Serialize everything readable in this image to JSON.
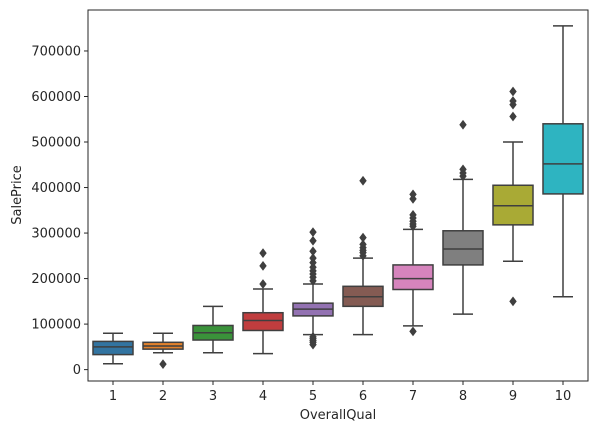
{
  "chart_data": {
    "type": "box",
    "xlabel": "OverallQual",
    "ylabel": "SalePrice",
    "ylim": [
      -25000,
      790000
    ],
    "yticks": [
      0,
      100000,
      200000,
      300000,
      400000,
      500000,
      600000,
      700000
    ],
    "categories": [
      "1",
      "2",
      "3",
      "4",
      "5",
      "6",
      "7",
      "8",
      "9",
      "10"
    ],
    "colors": [
      "#3274a1",
      "#e1812c",
      "#3a923a",
      "#c03d3e",
      "#9372b2",
      "#845b53",
      "#d684bd",
      "#7f7f7f",
      "#a9aa35",
      "#2eb4c1"
    ],
    "series": [
      {
        "category": "1",
        "whisker_low": 13000,
        "q1": 33000,
        "median": 50000,
        "q3": 62000,
        "whisker_high": 80000,
        "outliers": []
      },
      {
        "category": "2",
        "whisker_low": 37000,
        "q1": 45000,
        "median": 52000,
        "q3": 60000,
        "whisker_high": 80000,
        "outliers": [
          12000
        ]
      },
      {
        "category": "3",
        "whisker_low": 37000,
        "q1": 65000,
        "median": 81000,
        "q3": 97000,
        "whisker_high": 139000,
        "outliers": []
      },
      {
        "category": "4",
        "whisker_low": 35000,
        "q1": 86000,
        "median": 108000,
        "q3": 125000,
        "whisker_high": 177000,
        "outliers": [
          188000,
          228000,
          256000
        ]
      },
      {
        "category": "5",
        "whisker_low": 77000,
        "q1": 118000,
        "median": 133000,
        "q3": 146000,
        "whisker_high": 188000,
        "outliers": [
          55000,
          60000,
          64000,
          68000,
          72000,
          195000,
          203000,
          210000,
          217000,
          225000,
          235000,
          245000,
          260000,
          283000,
          302000
        ]
      },
      {
        "category": "6",
        "whisker_low": 77000,
        "q1": 139000,
        "median": 160000,
        "q3": 183000,
        "whisker_high": 245000,
        "outliers": [
          250000,
          257000,
          262000,
          268000,
          275000,
          290000,
          415000
        ]
      },
      {
        "category": "7",
        "whisker_low": 96000,
        "q1": 176000,
        "median": 200000,
        "q3": 230000,
        "whisker_high": 308000,
        "outliers": [
          84000,
          315000,
          320000,
          326000,
          333000,
          340000,
          375000,
          385000
        ]
      },
      {
        "category": "8",
        "whisker_low": 122000,
        "q1": 230000,
        "median": 265000,
        "q3": 305000,
        "whisker_high": 418000,
        "outliers": [
          425000,
          432000,
          440000,
          538000
        ]
      },
      {
        "category": "9",
        "whisker_low": 238000,
        "q1": 318000,
        "median": 360000,
        "q3": 405000,
        "whisker_high": 500000,
        "outliers": [
          150000,
          556000,
          582000,
          590000,
          611000
        ]
      },
      {
        "category": "10",
        "whisker_low": 160000,
        "q1": 386000,
        "median": 452000,
        "q3": 540000,
        "whisker_high": 755000,
        "outliers": []
      }
    ]
  }
}
